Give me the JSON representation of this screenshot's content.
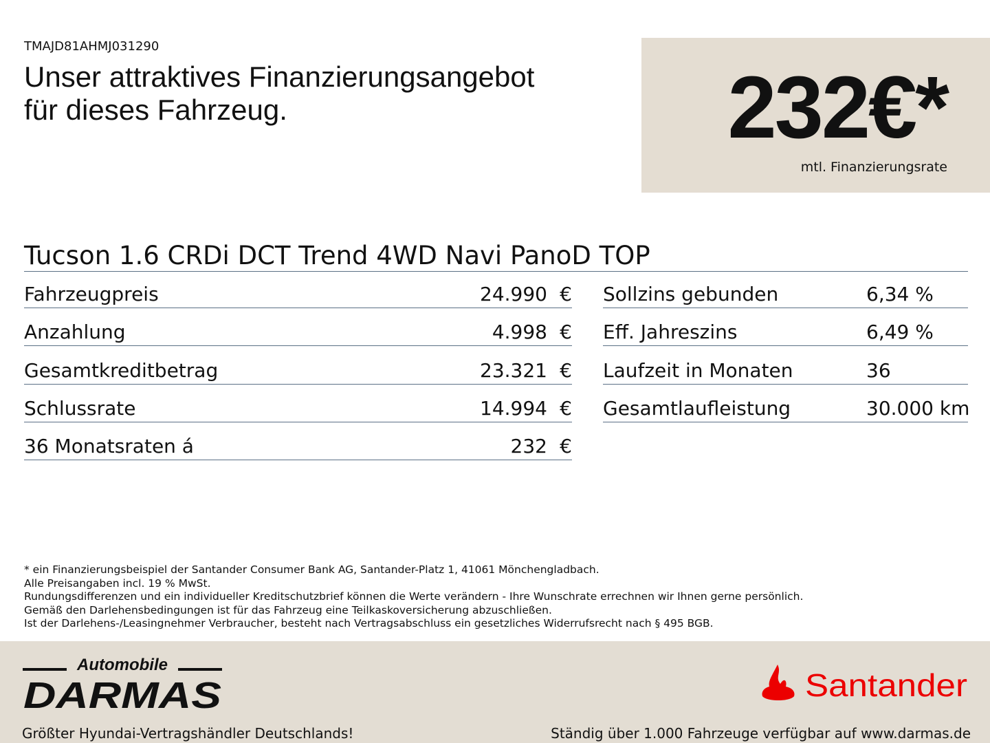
{
  "vin": "TMAJD81AHMJ031290",
  "headline": [
    "Unser attraktives Finanzierungsangebot",
    "für dieses Fahrzeug."
  ],
  "price": {
    "value": "232€*",
    "caption": "mtl. Finanzierungsrate"
  },
  "model": "Tucson 1.6 CRDi DCT Trend 4WD Navi PanoD TOP",
  "left_rows": [
    {
      "label": "Fahrzeugpreis",
      "value": "24.990",
      "currency": "€"
    },
    {
      "label": "Anzahlung",
      "value": "4.998",
      "currency": "€"
    },
    {
      "label": "Gesamtkreditbetrag",
      "value": "23.321",
      "currency": "€"
    },
    {
      "label": "Schlussrate",
      "value": "14.994",
      "currency": "€"
    },
    {
      "label": "36 Monatsraten á",
      "value": "232",
      "currency": "€"
    }
  ],
  "right_rows": [
    {
      "label": "Sollzins gebunden",
      "value": "6,34 %"
    },
    {
      "label": "Eff. Jahreszins",
      "value": "6,49 %"
    },
    {
      "label": "Laufzeit in Monaten",
      "value": "36"
    },
    {
      "label": "Gesamtlaufleistung",
      "value": "30.000 km"
    }
  ],
  "notes": [
    "* ein Finanzierungsbeispiel der Santander Consumer Bank AG, Santander-Platz 1, 41061 Mönchengladbach.",
    "Alle Preisangaben incl. 19 % MwSt.",
    "Rundungsdifferenzen und ein individueller Kreditschutzbrief können die Werte verändern - Ihre Wunschrate errechnen wir Ihnen gerne persönlich.",
    "Gemäß den Darlehensbedingungen ist für das Fahrzeug eine Teilkaskoversicherung abzuschließen.",
    "Ist der Darlehens-/Leasingnehmer Verbraucher, besteht nach Vertragsabschluss ein gesetzliches Widerrufsrecht nach § 495 BGB."
  ],
  "footer": {
    "dealer_logo": {
      "top": "Automobile",
      "main": "DARMAS"
    },
    "bank_logo": "Santander",
    "left_text": "Größter Hyundai-Vertragshändler Deutschlands!",
    "right_text": "Ständig über 1.000 Fahrzeuge verfügbar auf www.darmas.de"
  },
  "colors": {
    "panel": "#e4ddd2",
    "rule": "#5a6f85",
    "santander_red": "#ec0000"
  }
}
